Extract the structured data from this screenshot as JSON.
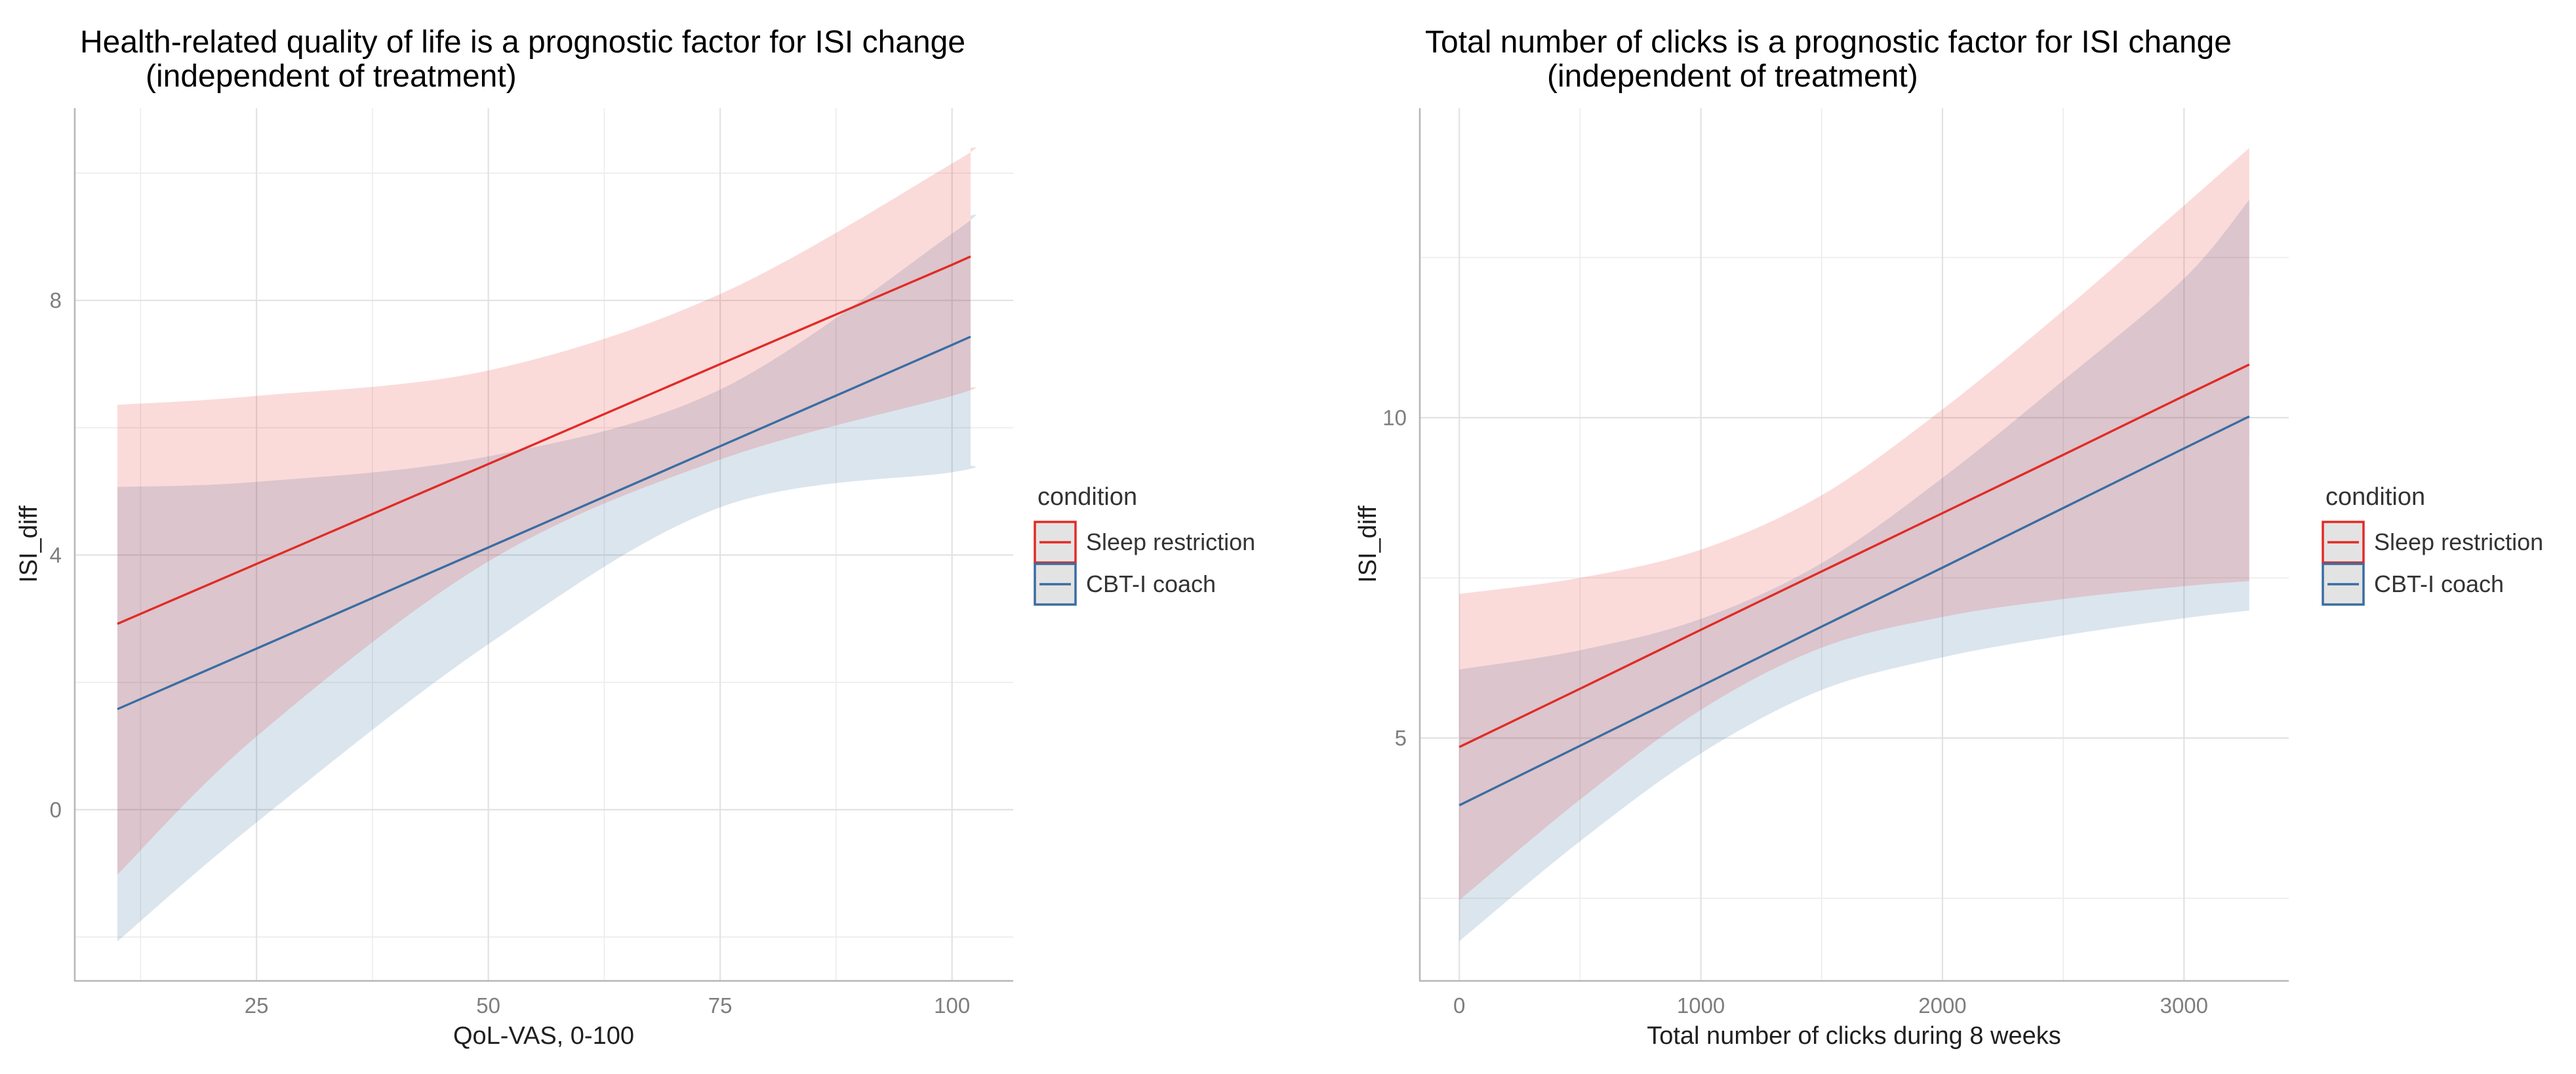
{
  "figure": {
    "background": "#FFFFFF"
  },
  "style": {
    "sleep_restriction_color": "#E12B26",
    "cbt_coach_color": "#3A6DA3",
    "sleep_restriction_ribbon": "rgba(225,43,38,0.17)",
    "cbt_coach_ribbon": "rgba(58,109,163,0.18)",
    "grid_major_color": "#E2E2E2",
    "grid_minor_color": "#ECECEC",
    "axis_line_color": "#B7B7B7",
    "tick_text_color": "#7E7E7E",
    "title_text_color": "#000000",
    "legend_key_fill": "#E3E3E3"
  },
  "legend": {
    "title": "condition",
    "items": [
      {
        "label": "Sleep restriction",
        "color": "#E12B26"
      },
      {
        "label": "CBT-I coach",
        "color": "#3A6DA3"
      }
    ]
  },
  "chart_data": [
    {
      "type": "line",
      "title_lines": [
        "Health-related quality of life is a prognostic factor for ISI change",
        "(independent of treatment)"
      ],
      "xlabel": "QoL-VAS, 0-100",
      "ylabel": "ISI_diff",
      "x_ticks": {
        "values": [
          25,
          50,
          75,
          100
        ],
        "labels": [
          "25",
          "50",
          "75",
          "100"
        ]
      },
      "y_ticks": {
        "values": [
          0,
          4,
          8
        ],
        "labels": [
          "0",
          "4",
          "8"
        ]
      },
      "x_minor": [
        12.5,
        37.5,
        62.5,
        87.5
      ],
      "y_minor": [
        -2,
        2,
        6,
        10
      ],
      "grid": true,
      "legend_position": "right",
      "xlim": [
        5.4,
        106.6
      ],
      "ylim": [
        -2.69,
        11.02
      ],
      "series": [
        {
          "name": "Sleep restriction",
          "color": "#E12B26",
          "fill": "rgba(225,43,38,0.17)",
          "x": [
            10,
            25,
            50,
            75,
            100,
            102
          ],
          "y": [
            2.92,
            3.86,
            5.43,
            7.0,
            8.56,
            8.69
          ],
          "upper": [
            6.36,
            6.5,
            6.9,
            8.1,
            10.15,
            10.4
          ],
          "lower": [
            -1.02,
            1.15,
            3.9,
            5.5,
            6.5,
            6.64
          ]
        },
        {
          "name": "CBT-I coach",
          "color": "#3A6DA3",
          "fill": "rgba(58,109,163,0.18)",
          "x": [
            10,
            25,
            50,
            75,
            100,
            102
          ],
          "y": [
            1.58,
            2.53,
            4.12,
            5.71,
            7.3,
            7.43
          ],
          "upper": [
            5.07,
            5.15,
            5.55,
            6.6,
            9.05,
            9.34
          ],
          "lower": [
            -2.07,
            -0.2,
            2.6,
            4.75,
            5.3,
            5.41
          ]
        }
      ]
    },
    {
      "type": "line",
      "title_lines": [
        "Total number of clicks is a prognostic factor for ISI change",
        "(independent of treatment)"
      ],
      "xlabel": "Total number of clicks during 8 weeks",
      "ylabel": "ISI_diff",
      "x_ticks": {
        "values": [
          0,
          1000,
          2000,
          3000
        ],
        "labels": [
          "0",
          "1000",
          "2000",
          "3000"
        ]
      },
      "y_ticks": {
        "values": [
          5,
          10
        ],
        "labels": [
          "5",
          "10"
        ]
      },
      "x_minor": [
        500,
        1500,
        2500
      ],
      "y_minor": [
        2.5,
        7.5,
        12.5
      ],
      "grid": true,
      "legend_position": "right",
      "xlim": [
        -163.5,
        3433.5
      ],
      "ylim": [
        1.21,
        14.83
      ],
      "series": [
        {
          "name": "Sleep restriction",
          "color": "#E12B26",
          "fill": "rgba(225,43,38,0.17)",
          "x": [
            0,
            500,
            1000,
            1500,
            2000,
            2500,
            3000,
            3270
          ],
          "y": [
            4.86,
            5.77,
            6.69,
            7.6,
            8.51,
            9.42,
            10.34,
            10.83
          ],
          "upper": [
            7.25,
            7.5,
            7.94,
            8.79,
            10.13,
            11.67,
            13.31,
            14.21
          ],
          "lower": [
            2.47,
            4.04,
            5.44,
            6.41,
            6.89,
            7.17,
            7.37,
            7.45
          ]
        },
        {
          "name": "CBT-I coach",
          "color": "#3A6DA3",
          "fill": "rgba(58,109,163,0.18)",
          "x": [
            0,
            500,
            1000,
            1500,
            2000,
            2500,
            3000,
            3270
          ],
          "y": [
            3.95,
            4.88,
            5.81,
            6.74,
            7.66,
            8.59,
            9.52,
            10.02
          ],
          "upper": [
            6.07,
            6.37,
            6.86,
            7.73,
            9.06,
            10.58,
            12.17,
            13.4
          ],
          "lower": [
            1.83,
            3.39,
            4.76,
            5.75,
            6.26,
            6.6,
            6.87,
            6.99
          ]
        }
      ]
    }
  ]
}
